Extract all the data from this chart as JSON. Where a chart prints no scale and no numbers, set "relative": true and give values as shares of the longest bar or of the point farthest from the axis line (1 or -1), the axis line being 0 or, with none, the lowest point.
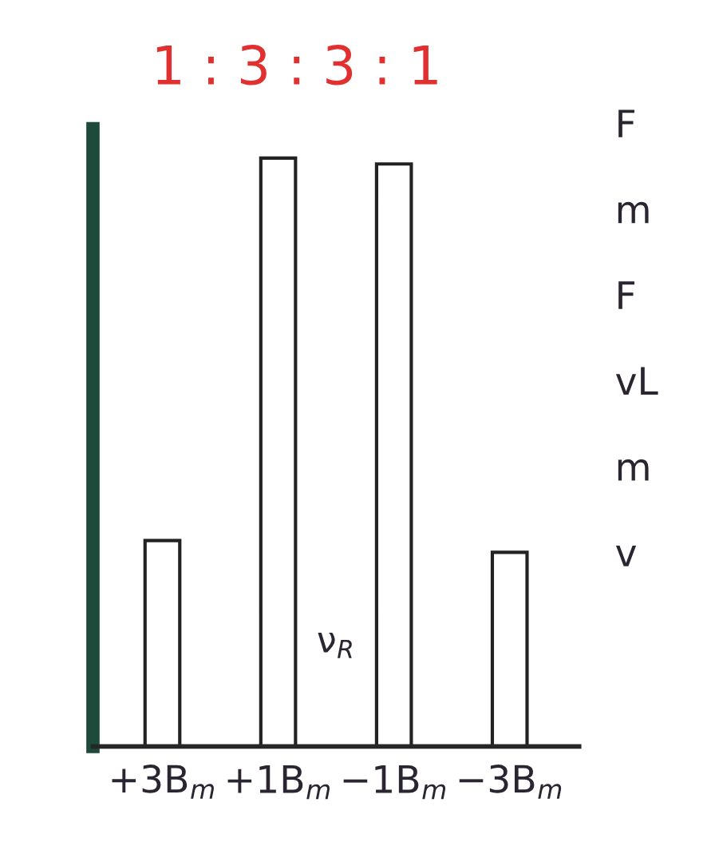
{
  "chart_data": {
    "type": "bar",
    "relative": true,
    "title": "1 : 3 : 3 : 1",
    "categories": [
      "+3B$_{m}$",
      "+1B$_{m}$",
      "−1B$_{m}$",
      "−3B$_{m}$"
    ],
    "series": [
      {
        "color": "#ffffff",
        "values": [
          0.35,
          1,
          0.99,
          0.33
        ]
      }
    ],
    "annotations": [
      "ν$_{R}$",
      "F",
      "m",
      "F",
      "vL",
      "m",
      "v"
    ],
    "grid": false,
    "legend": false
  }
}
